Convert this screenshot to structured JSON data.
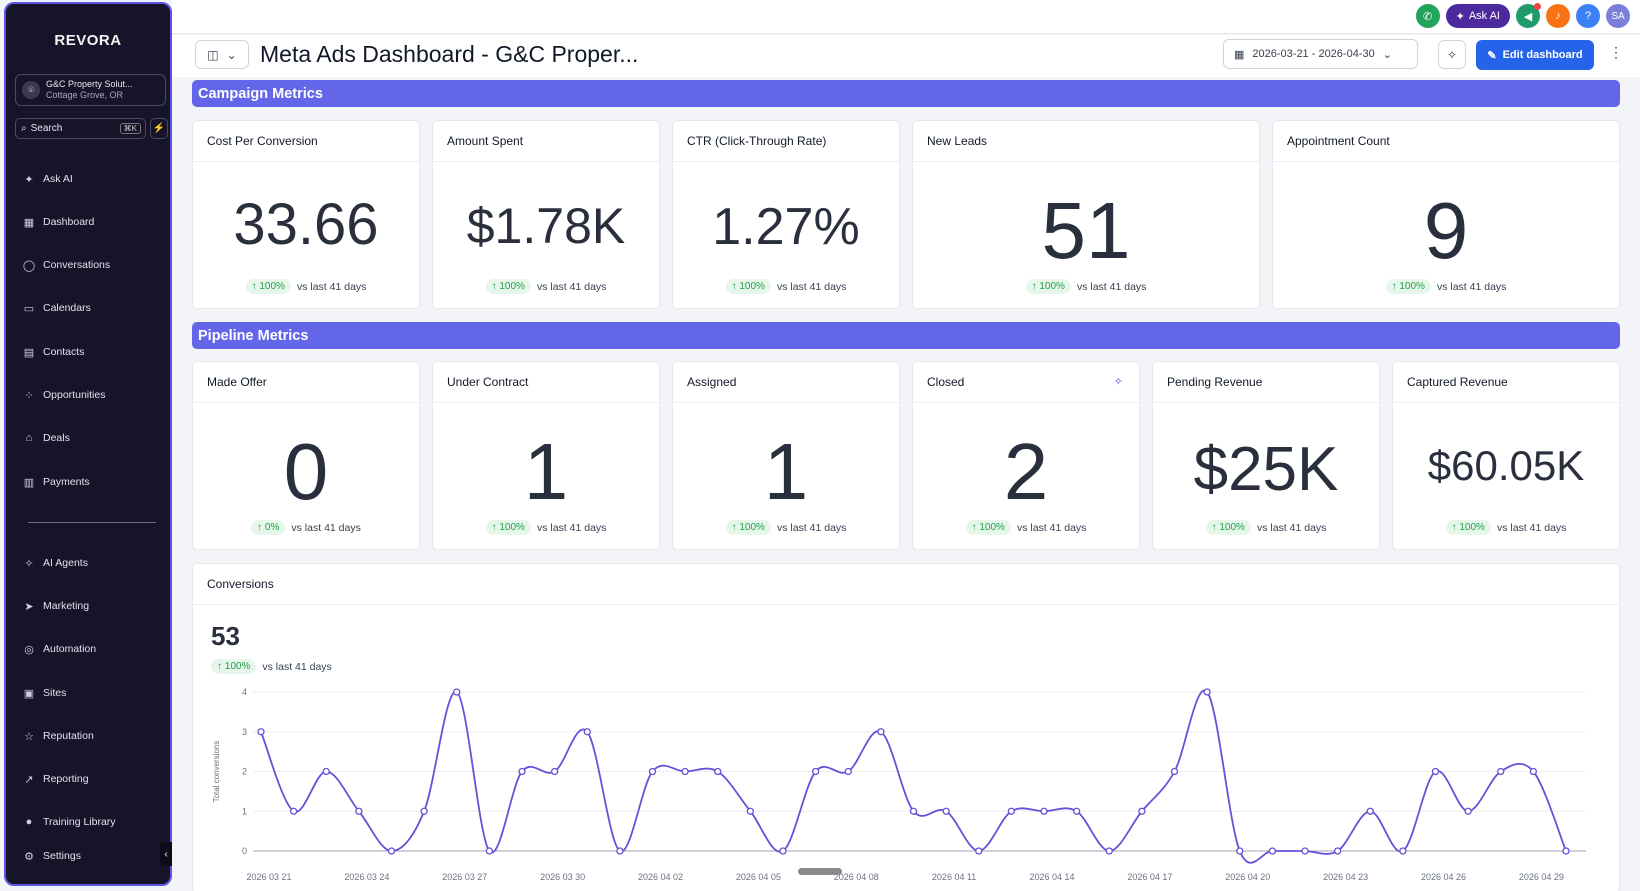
{
  "brand": "REVORA",
  "account": {
    "name": "G&C Property Solut...",
    "location": "Cottage Grove, OR"
  },
  "search": {
    "label": "Search",
    "shortcut": "⌘K"
  },
  "nav": [
    {
      "label": "Ask AI",
      "icon": "sparkle-icon",
      "glyph": "✦"
    },
    {
      "label": "Dashboard",
      "icon": "dashboard-icon",
      "glyph": "▦"
    },
    {
      "label": "Conversations",
      "icon": "chat-bubble-icon",
      "glyph": "◯"
    },
    {
      "label": "Calendars",
      "icon": "calendar-icon",
      "glyph": "▭"
    },
    {
      "label": "Contacts",
      "icon": "contacts-icon",
      "glyph": "▤"
    },
    {
      "label": "Opportunities",
      "icon": "opportunities-icon",
      "glyph": "⁘"
    },
    {
      "label": "Deals",
      "icon": "home-icon",
      "glyph": "⌂"
    },
    {
      "label": "Payments",
      "icon": "receipt-icon",
      "glyph": "▥"
    },
    {
      "label": "AI Agents",
      "icon": "ai-agents-icon",
      "glyph": "✧"
    },
    {
      "label": "Marketing",
      "icon": "send-icon",
      "glyph": "➤"
    },
    {
      "label": "Automation",
      "icon": "automation-icon",
      "glyph": "◎"
    },
    {
      "label": "Sites",
      "icon": "sites-icon",
      "glyph": "▣"
    },
    {
      "label": "Reputation",
      "icon": "star-icon",
      "glyph": "☆"
    },
    {
      "label": "Reporting",
      "icon": "trend-icon",
      "glyph": "↗"
    },
    {
      "label": "Training Library",
      "icon": "training-icon",
      "glyph": "●"
    },
    {
      "label": "Settings",
      "icon": "gear-icon",
      "glyph": "⚙"
    }
  ],
  "topbar": {
    "ask_ai": "Ask AI",
    "avatar": "SA",
    "help": "?"
  },
  "header": {
    "title": "Meta Ads Dashboard - G&C Proper...",
    "date_range": "2026-03-21 - 2026-04-30",
    "edit_label": "Edit dashboard"
  },
  "sections": {
    "campaign": "Campaign Metrics",
    "pipeline": "Pipeline Metrics"
  },
  "campaign_cards": [
    {
      "title": "Cost Per Conversion",
      "value": "33.66",
      "change": "↑ 100%",
      "compare": "vs last 41 days"
    },
    {
      "title": "Amount Spent",
      "value": "$1.78K",
      "change": "↑ 100%",
      "compare": "vs last 41 days"
    },
    {
      "title": "CTR (Click-Through Rate)",
      "value": "1.27%",
      "change": "↑ 100%",
      "compare": "vs last 41 days"
    },
    {
      "title": "New Leads",
      "value": "51",
      "change": "↑ 100%",
      "compare": "vs last 41 days"
    },
    {
      "title": "Appointment Count",
      "value": "9",
      "change": "↑ 100%",
      "compare": "vs last 41 days"
    }
  ],
  "pipeline_cards": [
    {
      "title": "Made Offer",
      "value": "0",
      "change": "↑ 0%",
      "compare": "vs last 41 days"
    },
    {
      "title": "Under Contract",
      "value": "1",
      "change": "↑ 100%",
      "compare": "vs last 41 days"
    },
    {
      "title": "Assigned",
      "value": "1",
      "change": "↑ 100%",
      "compare": "vs last 41 days"
    },
    {
      "title": "Closed",
      "value": "2",
      "change": "↑ 100%",
      "compare": "vs last 41 days"
    },
    {
      "title": "Pending Revenue",
      "value": "$25K",
      "change": "↑ 100%",
      "compare": "vs last 41 days"
    },
    {
      "title": "Captured Revenue",
      "value": "$60.05K",
      "change": "↑ 100%",
      "compare": "vs last 41 days"
    }
  ],
  "conversions": {
    "title": "Conversions",
    "total": "53",
    "change": "↑ 100%",
    "compare": "vs last 41 days"
  },
  "colors": {
    "accent": "#6366e8",
    "line": "#6a4fd8",
    "primary": "#2563eb",
    "sidebar": "#17142a"
  },
  "chart_data": {
    "type": "line",
    "ylabel": "Total conversions",
    "ylim": [
      0,
      4
    ],
    "yticks": [
      0,
      1,
      2,
      3,
      4
    ],
    "xtick_labels": [
      "2026 03 21",
      "2026 03 24",
      "2026 03 27",
      "2026 03 30",
      "2026 04 02",
      "2026 04 05",
      "2026 04 08",
      "2026 04 11",
      "2026 04 14",
      "2026 04 17",
      "2026 04 20",
      "2026 04 23",
      "2026 04 26",
      "2026 04 29"
    ],
    "x": [
      "2026-03-21",
      "2026-03-22",
      "2026-03-23",
      "2026-03-24",
      "2026-03-25",
      "2026-03-26",
      "2026-03-27",
      "2026-03-28",
      "2026-03-29",
      "2026-03-30",
      "2026-03-31",
      "2026-04-01",
      "2026-04-02",
      "2026-04-03",
      "2026-04-04",
      "2026-04-05",
      "2026-04-06",
      "2026-04-07",
      "2026-04-08",
      "2026-04-09",
      "2026-04-10",
      "2026-04-11",
      "2026-04-12",
      "2026-04-13",
      "2026-04-14",
      "2026-04-15",
      "2026-04-16",
      "2026-04-17",
      "2026-04-18",
      "2026-04-19",
      "2026-04-20",
      "2026-04-21",
      "2026-04-22",
      "2026-04-23",
      "2026-04-24",
      "2026-04-25",
      "2026-04-26",
      "2026-04-27",
      "2026-04-28",
      "2026-04-29",
      "2026-04-30"
    ],
    "series": [
      {
        "values": [
          3,
          1,
          2,
          1,
          0,
          1,
          4,
          0,
          2,
          2,
          3,
          0,
          2,
          2,
          2,
          1,
          0,
          2,
          2,
          3,
          1,
          1,
          0,
          1,
          1,
          1,
          0,
          1,
          2,
          4,
          0,
          0,
          0,
          0,
          1,
          0,
          2,
          1,
          2,
          2,
          0
        ]
      }
    ],
    "grid": true
  }
}
